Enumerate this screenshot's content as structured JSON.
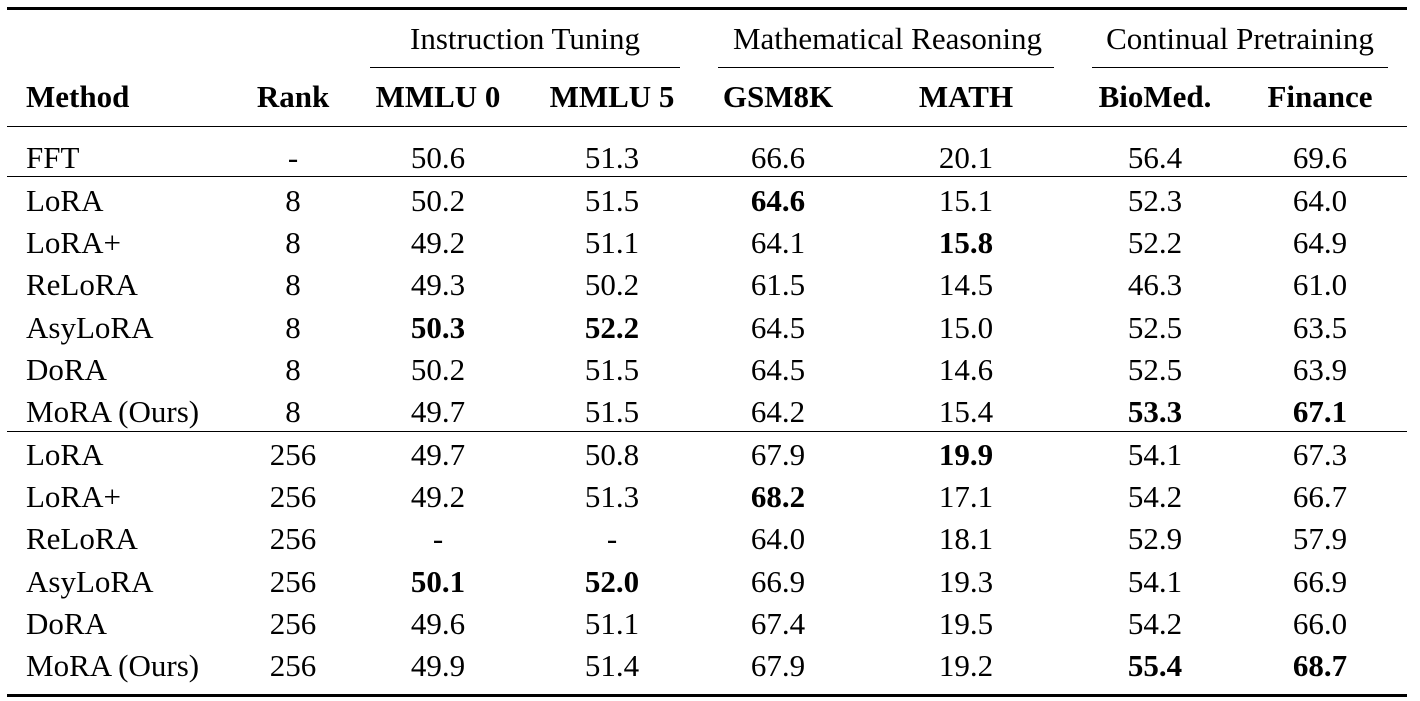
{
  "groups": {
    "instruction": "Instruction Tuning",
    "math": "Mathematical Reasoning",
    "continual": "Continual Pretraining"
  },
  "columns": {
    "method": "Method",
    "rank": "Rank",
    "mmlu0": "MMLU 0",
    "mmlu5": "MMLU 5",
    "gsm8k": "GSM8K",
    "math": "MATH",
    "biomed": "BioMed.",
    "finance": "Finance"
  },
  "rows": [
    {
      "method": "FFT",
      "rank": "-",
      "mmlu0": "50.6",
      "mmlu5": "51.3",
      "gsm8k": "66.6",
      "math": "20.1",
      "biomed": "56.4",
      "finance": "69.6"
    },
    {
      "method": "LoRA",
      "rank": "8",
      "mmlu0": "50.2",
      "mmlu5": "51.5",
      "gsm8k": "64.6",
      "math": "15.1",
      "biomed": "52.3",
      "finance": "64.0"
    },
    {
      "method": "LoRA+",
      "rank": "8",
      "mmlu0": "49.2",
      "mmlu5": "51.1",
      "gsm8k": "64.1",
      "math": "15.8",
      "biomed": "52.2",
      "finance": "64.9"
    },
    {
      "method": "ReLoRA",
      "rank": "8",
      "mmlu0": "49.3",
      "mmlu5": "50.2",
      "gsm8k": "61.5",
      "math": "14.5",
      "biomed": "46.3",
      "finance": "61.0"
    },
    {
      "method": "AsyLoRA",
      "rank": "8",
      "mmlu0": "50.3",
      "mmlu5": "52.2",
      "gsm8k": "64.5",
      "math": "15.0",
      "biomed": "52.5",
      "finance": "63.5"
    },
    {
      "method": "DoRA",
      "rank": "8",
      "mmlu0": "50.2",
      "mmlu5": "51.5",
      "gsm8k": "64.5",
      "math": "14.6",
      "biomed": "52.5",
      "finance": "63.9"
    },
    {
      "method": "MoRA (Ours)",
      "rank": "8",
      "mmlu0": "49.7",
      "mmlu5": "51.5",
      "gsm8k": "64.2",
      "math": "15.4",
      "biomed": "53.3",
      "finance": "67.1"
    },
    {
      "method": "LoRA",
      "rank": "256",
      "mmlu0": "49.7",
      "mmlu5": "50.8",
      "gsm8k": "67.9",
      "math": "19.9",
      "biomed": "54.1",
      "finance": "67.3"
    },
    {
      "method": "LoRA+",
      "rank": "256",
      "mmlu0": "49.2",
      "mmlu5": "51.3",
      "gsm8k": "68.2",
      "math": "17.1",
      "biomed": "54.2",
      "finance": "66.7"
    },
    {
      "method": "ReLoRA",
      "rank": "256",
      "mmlu0": "-",
      "mmlu5": "-",
      "gsm8k": "64.0",
      "math": "18.1",
      "biomed": "52.9",
      "finance": "57.9"
    },
    {
      "method": "AsyLoRA",
      "rank": "256",
      "mmlu0": "50.1",
      "mmlu5": "52.0",
      "gsm8k": "66.9",
      "math": "19.3",
      "biomed": "54.1",
      "finance": "66.9"
    },
    {
      "method": "DoRA",
      "rank": "256",
      "mmlu0": "49.6",
      "mmlu5": "51.1",
      "gsm8k": "67.4",
      "math": "19.5",
      "biomed": "54.2",
      "finance": "66.0"
    },
    {
      "method": "MoRA (Ours)",
      "rank": "256",
      "mmlu0": "49.9",
      "mmlu5": "51.4",
      "gsm8k": "67.9",
      "math": "19.2",
      "biomed": "55.4",
      "finance": "68.7"
    }
  ],
  "bold_cells": [
    {
      "row": 1,
      "col": "gsm8k"
    },
    {
      "row": 2,
      "col": "math"
    },
    {
      "row": 4,
      "col": "mmlu0"
    },
    {
      "row": 4,
      "col": "mmlu5"
    },
    {
      "row": 6,
      "col": "biomed"
    },
    {
      "row": 6,
      "col": "finance"
    },
    {
      "row": 7,
      "col": "math"
    },
    {
      "row": 8,
      "col": "gsm8k"
    },
    {
      "row": 10,
      "col": "mmlu0"
    },
    {
      "row": 10,
      "col": "mmlu5"
    },
    {
      "row": 12,
      "col": "biomed"
    },
    {
      "row": 12,
      "col": "finance"
    }
  ]
}
